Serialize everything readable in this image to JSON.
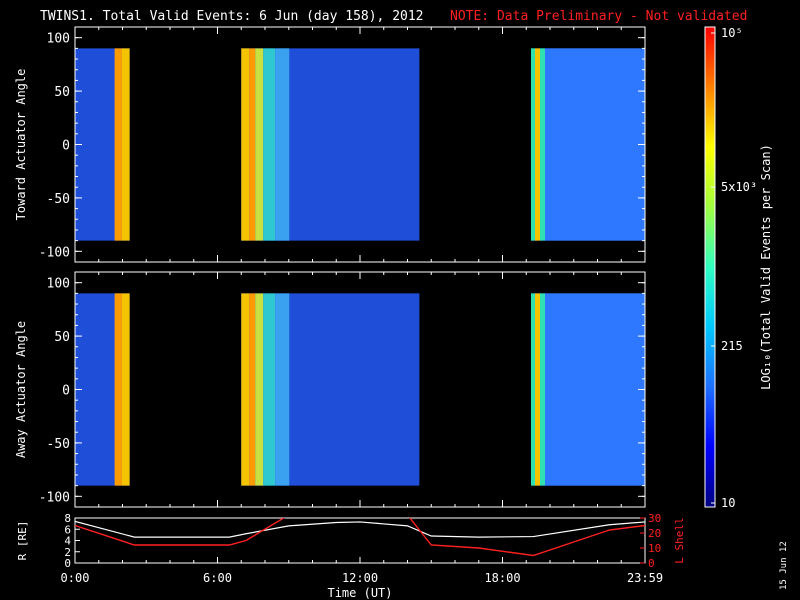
{
  "title": {
    "main": "TWINS1. Total Valid Events:  6 Jun (day 158), 2012",
    "note": "NOTE: Data Preliminary - Not validated",
    "note_color": "#ff2020"
  },
  "footer_stamp": "15 Jun 12",
  "chart_data": [
    {
      "type": "heatmap",
      "ylabel": "Toward Actuator Angle",
      "ylim": [
        -110,
        110
      ],
      "y_ticks": [
        "100",
        "50",
        "0",
        "-50",
        "-100"
      ],
      "data_angle_range": [
        -90,
        90
      ],
      "data_intervals_hours": [
        [
          0.0,
          2.3
        ],
        [
          7.0,
          14.5
        ],
        [
          19.2,
          24.0
        ]
      ],
      "colors": [
        "#1f4fd8",
        "#f5c400",
        "#2e78ff"
      ]
    },
    {
      "type": "heatmap",
      "ylabel": "Away Actuator Angle",
      "ylim": [
        -110,
        110
      ],
      "y_ticks": [
        "100",
        "50",
        "0",
        "-50",
        "-100"
      ],
      "data_angle_range": [
        -90,
        90
      ],
      "data_intervals_hours": [
        [
          0.0,
          2.3
        ],
        [
          7.0,
          14.5
        ],
        [
          19.2,
          24.0
        ]
      ],
      "colors": [
        "#1f4fd8",
        "#f5c400",
        "#2e78ff"
      ]
    },
    {
      "type": "line",
      "ylabel_left": "R [RE]",
      "ylabel_right": "L Shell",
      "left_ticks": [
        "8",
        "6",
        "4",
        "2",
        "0"
      ],
      "right_ticks": [
        "30",
        "20",
        "10",
        "0"
      ],
      "xlabel": "Time (UT)",
      "x_ticks": [
        "0:00",
        "6:00",
        "12:00",
        "18:00",
        "23:59"
      ],
      "x_hours": [
        0,
        2.5,
        6.5,
        7.2,
        9.0,
        11.0,
        12.0,
        14.0,
        15.0,
        17.0,
        19.3,
        22.5,
        24.0
      ],
      "R_values": [
        7.4,
        4.6,
        4.6,
        5.2,
        6.6,
        7.2,
        7.3,
        6.6,
        4.8,
        4.6,
        4.7,
        6.8,
        7.3
      ],
      "L_values": [
        25,
        12,
        12,
        15,
        32,
        32,
        32,
        32,
        12,
        10,
        5,
        22,
        25
      ],
      "series": [
        {
          "name": "R",
          "color": "#ffffff"
        },
        {
          "name": "L Shell",
          "color": "#ff2020"
        }
      ]
    }
  ],
  "colorbar": {
    "label": "LOG10(Total Valid Events per Scan)",
    "tick_labels": [
      "10^5",
      "5x10^3",
      "215",
      "10"
    ],
    "gradient_stops": [
      "#000080",
      "#0000ff",
      "#1e6fff",
      "#00c8ff",
      "#30ffc0",
      "#a0ff40",
      "#ffff00",
      "#ff8000",
      "#ff0000"
    ]
  }
}
